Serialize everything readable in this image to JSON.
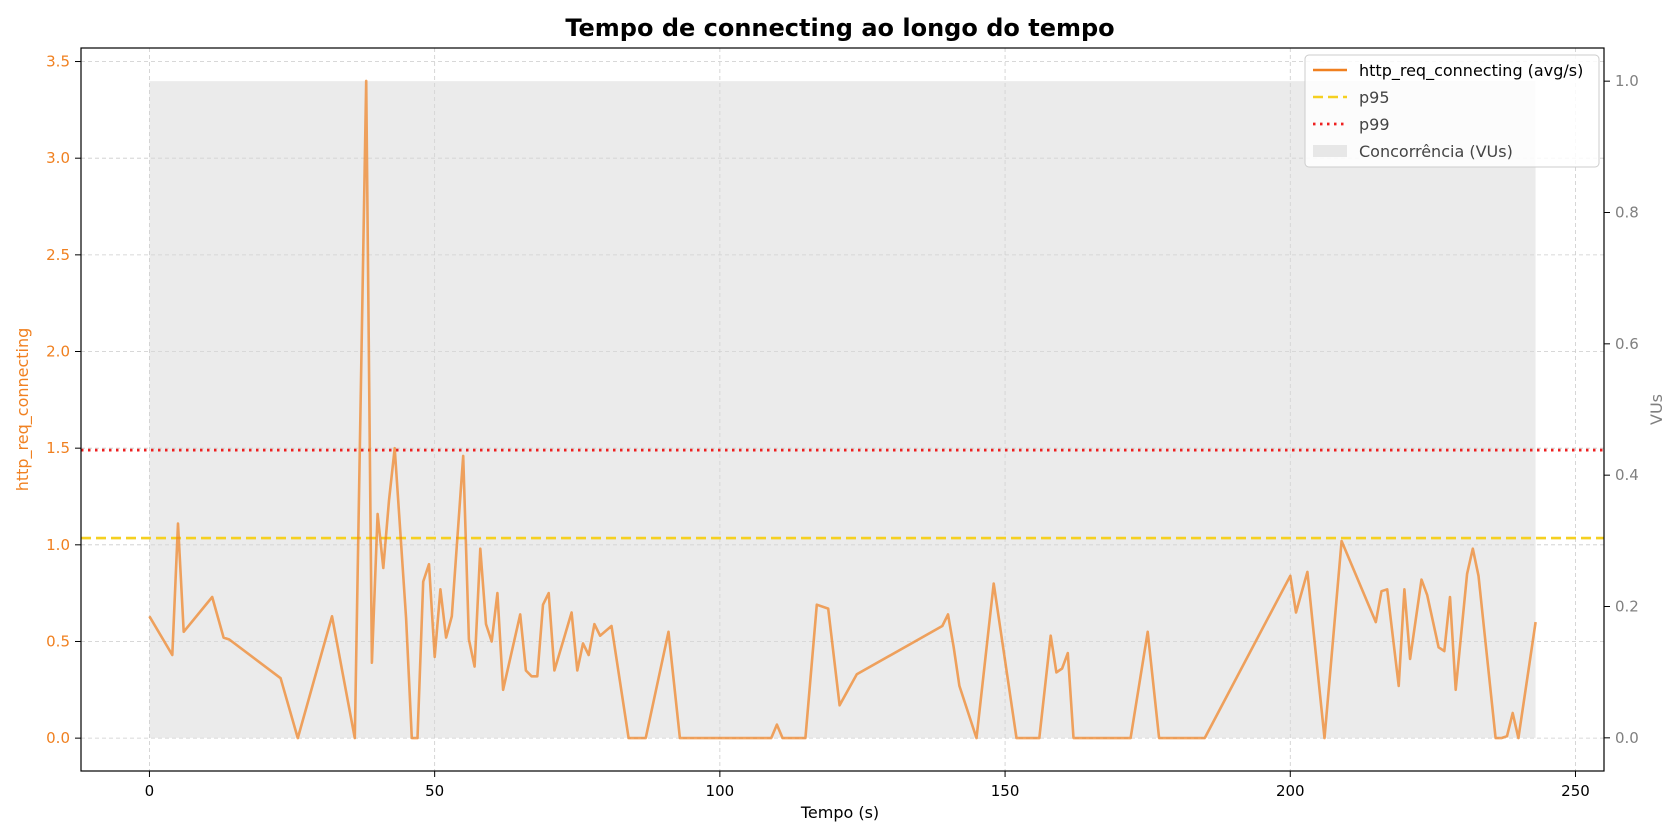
{
  "chart_data": {
    "type": "line",
    "title": "Tempo de connecting ao longo do tempo",
    "xlabel": "Tempo (s)",
    "ylabel": "http_req_connecting",
    "y2label": "VUs",
    "xlim": [
      -12,
      255
    ],
    "ylim": [
      -0.17,
      3.57
    ],
    "y2lim": [
      -0.0505,
      1.0505
    ],
    "xticks": [
      0,
      50,
      100,
      150,
      200,
      250
    ],
    "yticks": [
      0.0,
      0.5,
      1.0,
      1.5,
      2.0,
      2.5,
      3.0,
      3.5
    ],
    "y2ticks": [
      0.0,
      0.2,
      0.4,
      0.6,
      0.8,
      1.0
    ],
    "grid": true,
    "legend_position": "top-right",
    "colors": {
      "series": "#f08020",
      "p95": "#f5d020",
      "p99": "#ee2020",
      "area": "#d8d8d8",
      "left_axis": "#f08020",
      "right_axis": "#808080"
    },
    "series": [
      {
        "name": "http_req_connecting (avg/s)",
        "x": [
          0,
          4,
          5,
          6,
          11,
          13,
          14,
          23,
          26,
          32,
          36,
          38,
          39,
          40,
          41,
          42,
          43,
          45,
          46,
          47,
          48,
          49,
          50,
          51,
          52,
          53,
          55,
          56,
          57,
          58,
          59,
          60,
          61,
          62,
          65,
          66,
          67,
          68,
          69,
          70,
          71,
          73,
          74,
          75,
          76,
          77,
          78,
          79,
          81,
          84,
          87,
          91,
          93,
          96,
          109,
          110,
          111,
          115,
          117,
          119,
          121,
          124,
          139,
          140,
          141,
          142,
          145,
          148,
          152,
          156,
          158,
          159,
          160,
          161,
          162,
          165,
          172,
          175,
          177,
          185,
          200,
          201,
          203,
          206,
          209,
          215,
          216,
          217,
          219,
          220,
          221,
          223,
          224,
          226,
          227,
          228,
          229,
          231,
          232,
          233,
          236,
          237,
          238,
          239,
          240,
          243
        ],
        "values": [
          0.63,
          0.43,
          1.11,
          0.55,
          0.73,
          0.52,
          0.51,
          0.31,
          0.0,
          0.63,
          0.0,
          3.4,
          0.39,
          1.16,
          0.88,
          1.23,
          1.5,
          0.62,
          0.0,
          0.0,
          0.81,
          0.9,
          0.42,
          0.77,
          0.52,
          0.63,
          1.46,
          0.51,
          0.37,
          0.98,
          0.59,
          0.5,
          0.75,
          0.25,
          0.64,
          0.35,
          0.32,
          0.32,
          0.69,
          0.75,
          0.35,
          0.55,
          0.65,
          0.35,
          0.49,
          0.43,
          0.59,
          0.53,
          0.58,
          0.0,
          0.0,
          0.55,
          0.0,
          0.0,
          0.0,
          0.07,
          0.0,
          0.0,
          0.69,
          0.67,
          0.17,
          0.33,
          0.58,
          0.64,
          0.47,
          0.27,
          0.0,
          0.8,
          0.0,
          0.0,
          0.53,
          0.34,
          0.36,
          0.44,
          0.0,
          0.0,
          0.0,
          0.55,
          0.0,
          0.0,
          0.84,
          0.65,
          0.86,
          0.0,
          1.02,
          0.6,
          0.76,
          0.77,
          0.27,
          0.77,
          0.41,
          0.82,
          0.74,
          0.47,
          0.45,
          0.73,
          0.25,
          0.85,
          0.98,
          0.84,
          0.0,
          0.0,
          0.01,
          0.13,
          0.0,
          0.6
        ]
      },
      {
        "name": "p95",
        "value": 1.035
      },
      {
        "name": "p99",
        "value": 1.49
      },
      {
        "name": "Concorrência (VUs)",
        "axis": "right",
        "x": [
          0,
          243
        ],
        "values": [
          1.0,
          1.0
        ]
      }
    ]
  }
}
